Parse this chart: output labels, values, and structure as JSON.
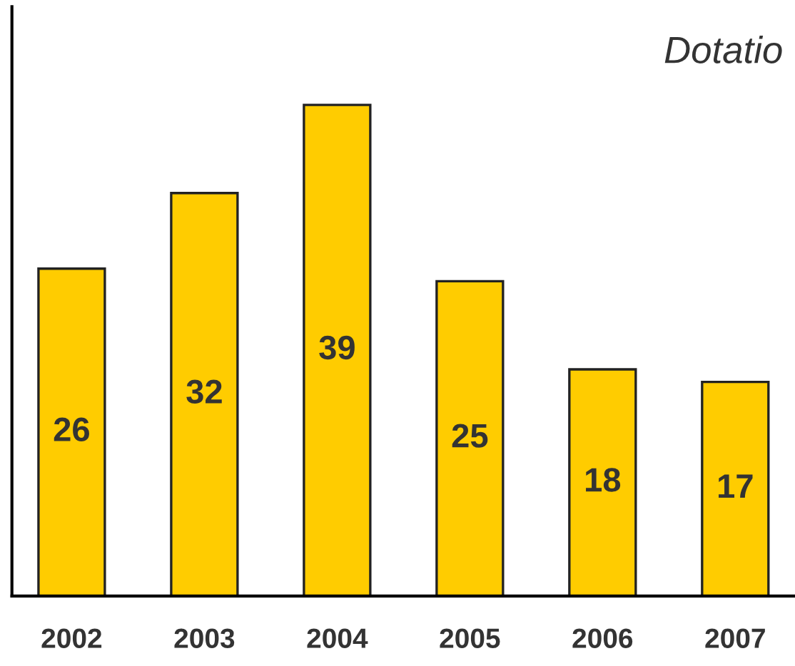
{
  "chart_data": {
    "type": "bar",
    "title": "Dotatio",
    "categories": [
      "2002",
      "2003",
      "2004",
      "2005",
      "2006",
      "2007"
    ],
    "values": [
      26,
      32,
      39,
      25,
      18,
      17
    ],
    "color": "#ffcc00",
    "data_labels": true,
    "grid": false
  }
}
